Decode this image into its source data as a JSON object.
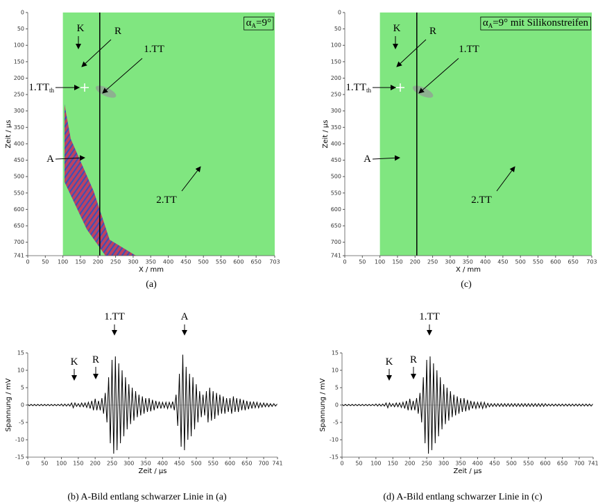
{
  "chart_data": [
    {
      "type": "image",
      "title": {
        "symbol": "α",
        "sub": "A",
        "text": "=9°"
      },
      "xlabel": "X / mm",
      "ylabel": "Zeit / µs",
      "caption": "(a)",
      "xlim": [
        0,
        703
      ],
      "ylim": [
        0,
        741
      ],
      "y_inverted": true,
      "xticks": [
        0,
        50,
        100,
        150,
        200,
        250,
        300,
        350,
        400,
        450,
        500,
        550,
        600,
        650,
        703
      ],
      "yticks": [
        0,
        50,
        100,
        150,
        200,
        250,
        300,
        350,
        400,
        450,
        500,
        550,
        600,
        650,
        700,
        741
      ],
      "image_xlim": [
        100,
        703
      ],
      "line_x": 205,
      "color": "#80e680",
      "streak": true,
      "annotations": [
        {
          "text": "K"
        },
        {
          "text": "R"
        },
        {
          "text": "1.TT"
        },
        {
          "text": "1.TT",
          "sub": "th"
        },
        {
          "text": "A"
        },
        {
          "text": "2.TT"
        }
      ]
    },
    {
      "type": "line",
      "xlabel": "Zeit / µs",
      "ylabel": "Spannung / mV",
      "caption": "(b) A-Bild entlang schwarzer Linie in (a)",
      "xlim": [
        0,
        741
      ],
      "ylim": [
        -15,
        15
      ],
      "xticks": [
        0,
        50,
        100,
        150,
        200,
        250,
        300,
        350,
        400,
        450,
        500,
        550,
        600,
        650,
        700,
        741
      ],
      "yticks": [
        -15,
        -10,
        -5,
        0,
        5,
        10,
        15
      ],
      "color": "#000000",
      "x": [
        0,
        5,
        10,
        15,
        20,
        25,
        30,
        35,
        40,
        45,
        50,
        55,
        60,
        65,
        70,
        75,
        80,
        85,
        90,
        95,
        100,
        105,
        110,
        115,
        120,
        125,
        130,
        135,
        140,
        145,
        150,
        155,
        160,
        165,
        170,
        175,
        180,
        185,
        190,
        195,
        200,
        205,
        210,
        215,
        220,
        225,
        230,
        235,
        240,
        245,
        250,
        255,
        260,
        265,
        270,
        275,
        280,
        285,
        290,
        295,
        300,
        305,
        310,
        315,
        320,
        325,
        330,
        335,
        340,
        345,
        350,
        355,
        360,
        365,
        370,
        375,
        380,
        385,
        390,
        395,
        400,
        405,
        410,
        415,
        420,
        425,
        430,
        435,
        440,
        445,
        450,
        455,
        460,
        465,
        470,
        475,
        480,
        485,
        490,
        495,
        500,
        505,
        510,
        515,
        520,
        525,
        530,
        535,
        540,
        545,
        550,
        555,
        560,
        565,
        570,
        575,
        580,
        585,
        590,
        595,
        600,
        605,
        610,
        615,
        620,
        625,
        630,
        635,
        640,
        645,
        650,
        655,
        660,
        665,
        670,
        675,
        680,
        685,
        690,
        695,
        700,
        705,
        710,
        715,
        720,
        725,
        730,
        735,
        740
      ],
      "values": [
        0.2,
        -0.2,
        0.2,
        -0.2,
        0.2,
        -0.2,
        0.2,
        -0.2,
        0.2,
        -0.2,
        0.2,
        -0.2,
        0.2,
        -0.2,
        0.2,
        -0.2,
        0.2,
        -0.2,
        0.2,
        -0.2,
        0.3,
        -0.3,
        0.3,
        -0.3,
        0.3,
        -0.3,
        0.6,
        -0.8,
        0.6,
        -0.4,
        0.4,
        -0.5,
        0.6,
        -0.5,
        0.6,
        -0.7,
        0.8,
        -1,
        1.2,
        -1.5,
        1.8,
        -1.5,
        1.2,
        -1.5,
        2,
        -2.5,
        3.5,
        -5,
        8,
        -11,
        13,
        -14,
        14,
        -13,
        12,
        -11,
        10,
        -9,
        8,
        -7,
        6,
        -5.5,
        5,
        -4.5,
        4,
        -3.5,
        3,
        -3,
        2.5,
        -2.5,
        2,
        -2,
        2,
        -1.8,
        1.5,
        -1.5,
        1.2,
        -1,
        1,
        -1,
        0.8,
        -0.8,
        0.8,
        -1,
        0.8,
        -0.8,
        1,
        -1.5,
        3,
        -6,
        9,
        -12,
        14.5,
        -13,
        11,
        -10,
        9,
        -9,
        8,
        -7,
        6,
        -5,
        4,
        -3.5,
        3,
        -3,
        4,
        -5,
        5,
        -4.5,
        4,
        -4,
        3.5,
        -3,
        3,
        -2.5,
        2.5,
        -2.5,
        2,
        -2,
        2,
        -2.5,
        2.5,
        -2,
        2,
        -2,
        1.8,
        -1.5,
        1.5,
        -1.5,
        1.2,
        -1.2,
        1,
        -1,
        1,
        -0.8,
        0.8,
        -0.8,
        0.6,
        -0.6,
        0.6,
        -0.5,
        0.5,
        -0.5,
        0.4,
        -0.4,
        0.4,
        -0.3,
        0.3
      ],
      "annotations": [
        {
          "text": "K"
        },
        {
          "text": "R"
        },
        {
          "text": "1.TT"
        },
        {
          "text": "A"
        }
      ]
    },
    {
      "type": "image",
      "title": {
        "symbol": "α",
        "sub": "A",
        "text": "=9° mit Silikonstreifen"
      },
      "xlabel": "X / mm",
      "ylabel": "Zeit / µs",
      "caption": "(c)",
      "xlim": [
        0,
        703
      ],
      "ylim": [
        0,
        741
      ],
      "y_inverted": true,
      "xticks": [
        0,
        50,
        100,
        150,
        200,
        250,
        300,
        350,
        400,
        450,
        500,
        550,
        600,
        650,
        703
      ],
      "yticks": [
        0,
        50,
        100,
        150,
        200,
        250,
        300,
        350,
        400,
        450,
        500,
        550,
        600,
        650,
        700,
        741
      ],
      "image_xlim": [
        100,
        703
      ],
      "line_x": 205,
      "color": "#80e680",
      "streak": false,
      "annotations": [
        {
          "text": "K"
        },
        {
          "text": "R"
        },
        {
          "text": "1.TT"
        },
        {
          "text": "1.TT",
          "sub": "th"
        },
        {
          "text": "A"
        },
        {
          "text": "2.TT"
        }
      ]
    },
    {
      "type": "line",
      "xlabel": "Zeit / µs",
      "ylabel": "Spannung / mV",
      "caption": "(d) A-Bild entlang schwarzer Linie in (c)",
      "xlim": [
        0,
        741
      ],
      "ylim": [
        -15,
        15
      ],
      "xticks": [
        0,
        50,
        100,
        150,
        200,
        250,
        300,
        350,
        400,
        450,
        500,
        550,
        600,
        650,
        700,
        741
      ],
      "yticks": [
        -15,
        -10,
        -5,
        0,
        5,
        10,
        15
      ],
      "color": "#000000",
      "x": [
        0,
        5,
        10,
        15,
        20,
        25,
        30,
        35,
        40,
        45,
        50,
        55,
        60,
        65,
        70,
        75,
        80,
        85,
        90,
        95,
        100,
        105,
        110,
        115,
        120,
        125,
        130,
        135,
        140,
        145,
        150,
        155,
        160,
        165,
        170,
        175,
        180,
        185,
        190,
        195,
        200,
        205,
        210,
        215,
        220,
        225,
        230,
        235,
        240,
        245,
        250,
        255,
        260,
        265,
        270,
        275,
        280,
        285,
        290,
        295,
        300,
        305,
        310,
        315,
        320,
        325,
        330,
        335,
        340,
        345,
        350,
        355,
        360,
        365,
        370,
        375,
        380,
        385,
        390,
        395,
        400,
        405,
        410,
        415,
        420,
        425,
        430,
        435,
        440,
        445,
        450,
        455,
        460,
        465,
        470,
        475,
        480,
        485,
        490,
        495,
        500,
        505,
        510,
        515,
        520,
        525,
        530,
        535,
        540,
        545,
        550,
        555,
        560,
        565,
        570,
        575,
        580,
        585,
        590,
        595,
        600,
        605,
        610,
        615,
        620,
        625,
        630,
        635,
        640,
        645,
        650,
        655,
        660,
        665,
        670,
        675,
        680,
        685,
        690,
        695,
        700,
        705,
        710,
        715,
        720,
        725,
        730,
        735,
        740
      ],
      "values": [
        0.2,
        -0.2,
        0.2,
        -0.2,
        0.2,
        -0.2,
        0.2,
        -0.2,
        0.2,
        -0.2,
        0.2,
        -0.2,
        0.2,
        -0.2,
        0.2,
        -0.2,
        0.2,
        -0.2,
        0.2,
        -0.2,
        0.3,
        -0.3,
        0.3,
        -0.3,
        0.3,
        -0.3,
        0.6,
        -0.8,
        0.6,
        -0.4,
        0.4,
        -0.5,
        0.6,
        -0.5,
        0.6,
        -0.7,
        0.8,
        -1,
        1.2,
        -1.5,
        1.8,
        -1.5,
        1.2,
        -1.5,
        2,
        -2.5,
        3.5,
        -5,
        8,
        -11,
        13,
        -14,
        14,
        -13,
        12,
        -11,
        10,
        -9,
        8,
        -7,
        6,
        -5.5,
        5,
        -4.5,
        4,
        -3.5,
        3,
        -3,
        2.5,
        -2.5,
        2,
        -2,
        2,
        -1.8,
        1.5,
        -1.5,
        1.2,
        -1,
        1,
        -1,
        0.8,
        -0.8,
        0.8,
        -1,
        0.8,
        -0.8,
        0.5,
        -0.5,
        0.4,
        -0.4,
        0.4,
        -0.4,
        0.4,
        -0.4,
        0.4,
        -0.4,
        0.4,
        -0.4,
        0.4,
        -0.4,
        0.4,
        -0.4,
        0.4,
        -0.4,
        0.4,
        -0.4,
        0.4,
        -0.4,
        0.4,
        -0.4,
        0.4,
        -0.4,
        0.4,
        -0.4,
        0.4,
        -0.4,
        0.4,
        -0.4,
        0.4,
        -0.4,
        0.4,
        -0.3,
        0.3,
        -0.3,
        0.3,
        -0.3,
        0.3,
        -0.3,
        0.3,
        -0.3,
        0.3,
        -0.3,
        0.3,
        -0.3,
        0.3,
        -0.3,
        0.3,
        -0.3,
        0.3,
        -0.3,
        0.3,
        -0.3,
        0.3,
        -0.3,
        0.3,
        -0.3,
        0.3,
        -0.3,
        0.3
      ],
      "annotations": [
        {
          "text": "K"
        },
        {
          "text": "R"
        },
        {
          "text": "1.TT"
        }
      ]
    }
  ]
}
